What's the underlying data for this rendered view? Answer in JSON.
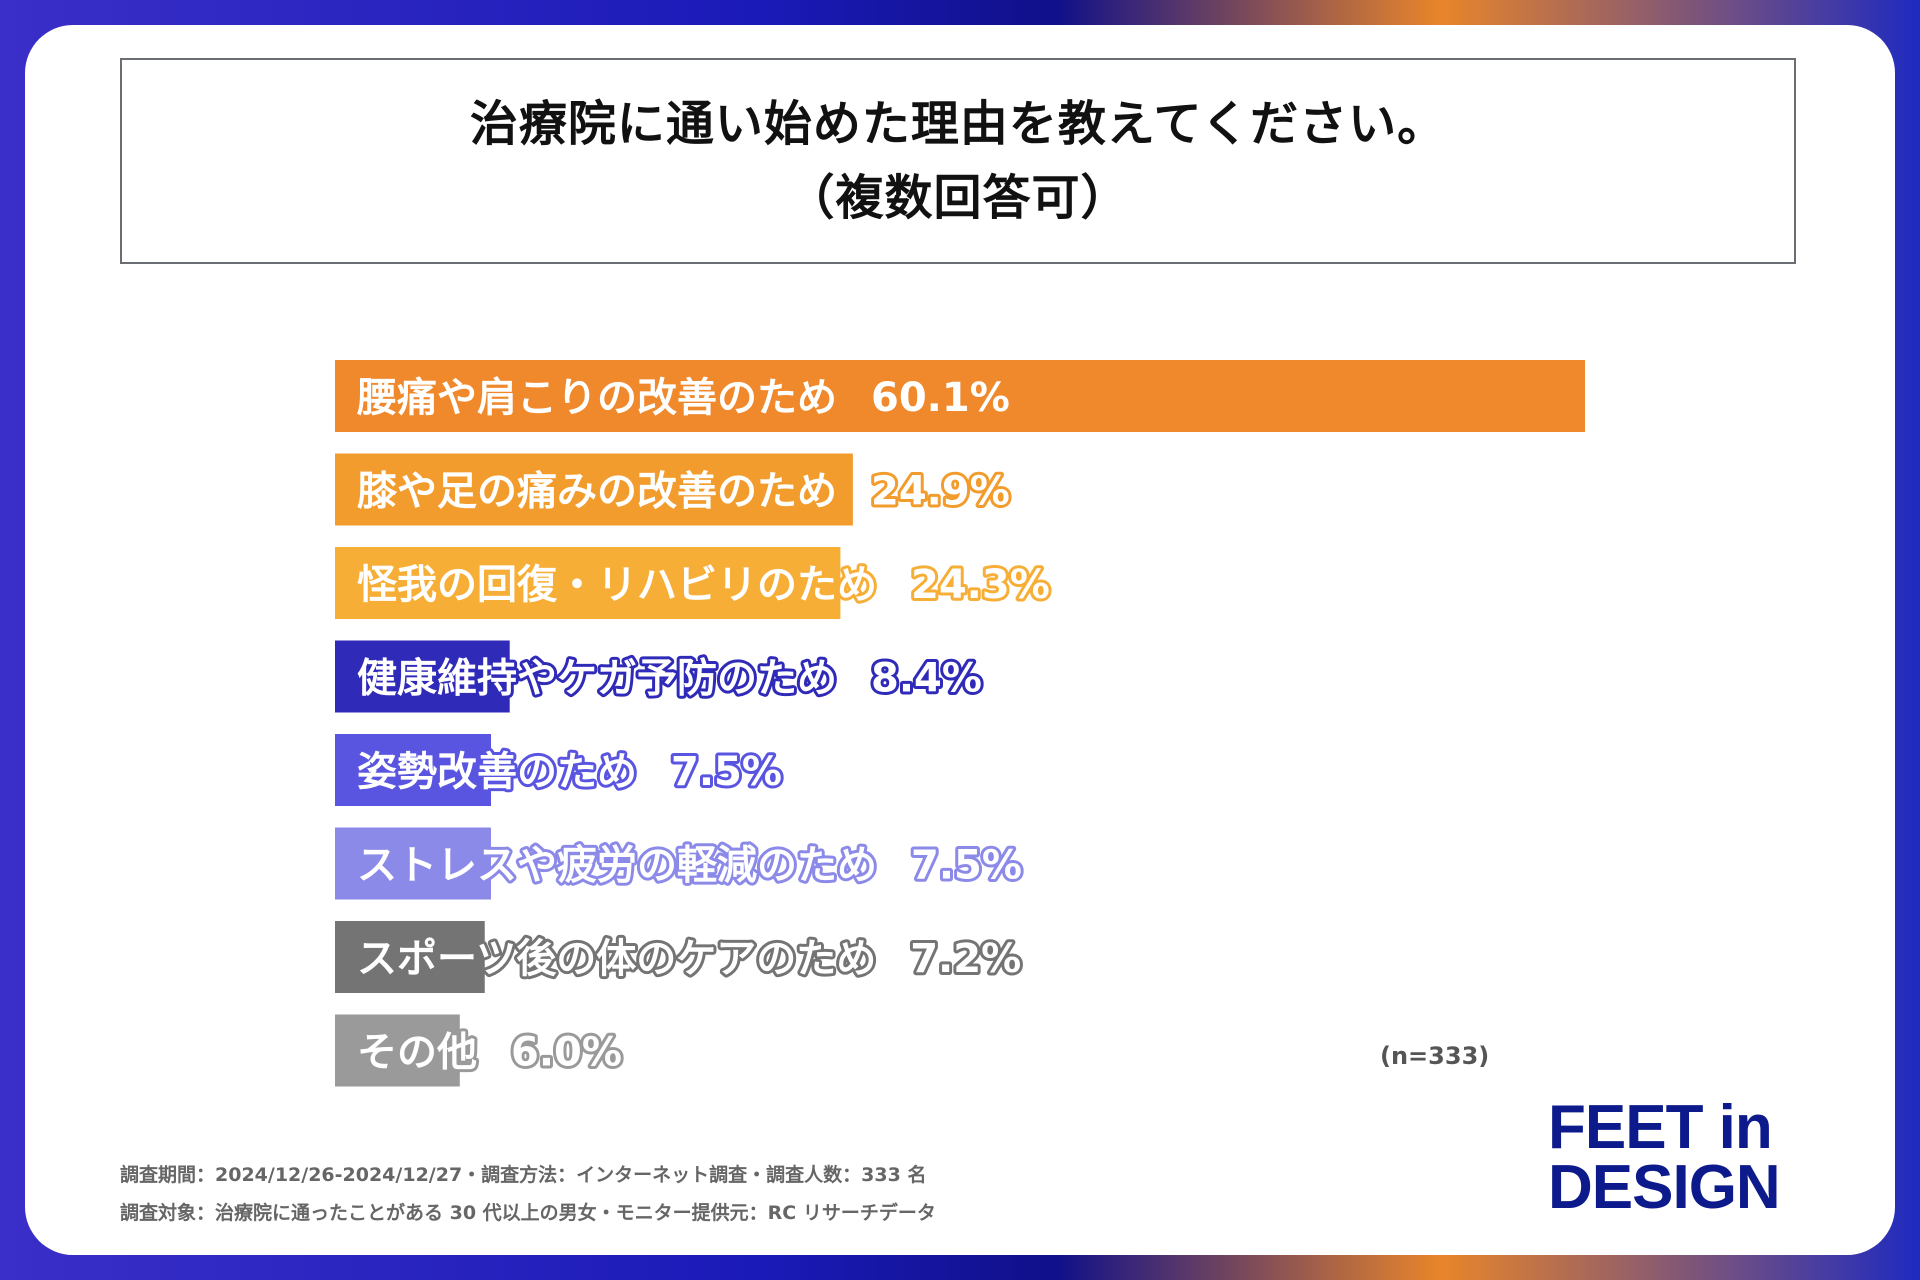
{
  "title": {
    "line1": "治療院に通い始めた理由を教えてください。",
    "line2": "（複数回答可）"
  },
  "chart_data": {
    "type": "bar",
    "orientation": "horizontal",
    "categories": [
      "腰痛や肩こりの改善のため",
      "膝や足の痛みの改善のため",
      "怪我の回復・リハビリのため",
      "健康維持やケガ予防のため",
      "姿勢改善のため",
      "ストレスや疲労の軽減のため",
      "スポーツ後の体のケアのため",
      "その他"
    ],
    "values": [
      60.1,
      24.9,
      24.3,
      8.4,
      7.5,
      7.5,
      7.2,
      6.0
    ],
    "value_labels": [
      "60.1%",
      "24.9%",
      "24.3%",
      "8.4%",
      "7.5%",
      "7.5%",
      "7.2%",
      "6.0%"
    ],
    "colors": [
      "#f0882c",
      "#f39c2e",
      "#f7ae36",
      "#2f2ab8",
      "#5a55e0",
      "#8c8ae8",
      "#747474",
      "#9a9a9a"
    ],
    "xlim": [
      0,
      60.1
    ],
    "title": "治療院に通い始めた理由を教えてください。（複数回答可）",
    "sample_size": "(n=333)"
  },
  "footnotes": {
    "line1": "調査期間：2024/12/26-2024/12/27・調査方法：インターネット調査・調査人数：333 名",
    "line2": "調査対象：治療院に通ったことがある 30 代以上の男女・モニター提供元：RC リサーチデータ"
  },
  "logo": {
    "line1": "FEET in",
    "line2": "DESIGN"
  }
}
